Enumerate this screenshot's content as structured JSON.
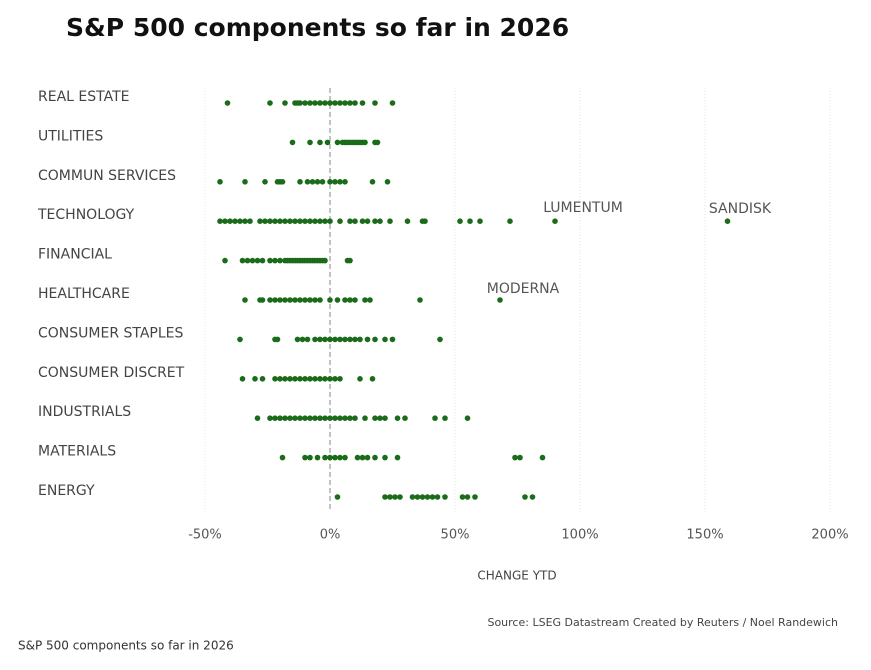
{
  "chart_data": {
    "type": "strip",
    "title": "S&P 500 components so far in 2026",
    "xlabel": "CHANGE YTD",
    "source": "Source: LSEG Datastream  Created by Reuters / Noel Randewich",
    "categories": [
      "REAL ESTATE",
      "UTILITIES",
      "COMMUN SERVICES",
      "TECHNOLOGY",
      "FINANCIAL",
      "HEALTHCARE",
      "CONSUMER STAPLES",
      "CONSUMER DISCRET",
      "INDUSTRIALS",
      "MATERIALS",
      "ENERGY"
    ],
    "color": "#1a6b1a",
    "values": [
      [
        -41,
        -24,
        -18,
        -14,
        -13,
        -12,
        -10,
        -8,
        -6,
        -4,
        -2,
        0,
        2,
        4,
        6,
        8,
        10,
        13,
        18,
        25
      ],
      [
        -15,
        -8,
        -4,
        -1,
        3,
        5,
        6,
        7,
        8,
        9,
        10,
        11,
        12,
        13,
        14,
        18,
        19
      ],
      [
        -44,
        -34,
        -26,
        -21,
        -20,
        -19,
        -12,
        -9,
        -7,
        -5,
        -3,
        0,
        2,
        4,
        6,
        17,
        23
      ],
      [
        -44,
        -42,
        -40,
        -38,
        -36,
        -34,
        -32,
        -28,
        -26,
        -24,
        -22,
        -20,
        -18,
        -16,
        -14,
        -12,
        -10,
        -8,
        -6,
        -4,
        -2,
        0,
        4,
        8,
        10,
        13,
        15,
        18,
        20,
        24,
        31,
        37,
        38,
        52,
        56,
        60,
        72,
        90,
        159
      ],
      [
        -42,
        -35,
        -33,
        -31,
        -29,
        -27,
        -24,
        -22,
        -20,
        -18,
        -17,
        -16,
        -15,
        -14,
        -13,
        -12,
        -11,
        -10,
        -9,
        -8,
        -7,
        -6,
        -5,
        -4,
        -3,
        -2,
        7,
        8
      ],
      [
        -34,
        -28,
        -27,
        -24,
        -22,
        -20,
        -18,
        -16,
        -14,
        -12,
        -10,
        -8,
        -6,
        -4,
        0,
        3,
        6,
        8,
        10,
        14,
        16,
        36,
        68
      ],
      [
        -36,
        -22,
        -21,
        -13,
        -11,
        -9,
        -6,
        -4,
        -2,
        0,
        2,
        4,
        6,
        8,
        10,
        12,
        15,
        18,
        22,
        25,
        44
      ],
      [
        -35,
        -30,
        -27,
        -22,
        -20,
        -18,
        -16,
        -14,
        -12,
        -10,
        -8,
        -6,
        -4,
        -2,
        0,
        2,
        4,
        12,
        17
      ],
      [
        -29,
        -24,
        -22,
        -20,
        -18,
        -16,
        -14,
        -12,
        -10,
        -8,
        -6,
        -4,
        -2,
        0,
        2,
        4,
        6,
        8,
        10,
        14,
        18,
        20,
        22,
        27,
        30,
        42,
        46,
        55
      ],
      [
        -19,
        -10,
        -8,
        -5,
        -2,
        0,
        2,
        4,
        6,
        11,
        13,
        15,
        18,
        22,
        27,
        74,
        76,
        85
      ],
      [
        3,
        22,
        24,
        26,
        28,
        33,
        35,
        37,
        39,
        41,
        43,
        46,
        53,
        55,
        58,
        78,
        81
      ]
    ],
    "annotations": [
      "LUMENTUM",
      "SANDISK",
      "MODERNA"
    ],
    "xlim": [
      -50,
      200
    ],
    "xticks": [
      {
        "value": -50,
        "label": "-50%"
      },
      {
        "value": 0,
        "label": "0%"
      },
      {
        "value": 50,
        "label": "50%"
      },
      {
        "value": 100,
        "label": "100%"
      },
      {
        "value": 150,
        "label": "150%"
      },
      {
        "value": 200,
        "label": "200%"
      }
    ],
    "grid": true
  },
  "caption": "S&P 500 components so far in 2026"
}
